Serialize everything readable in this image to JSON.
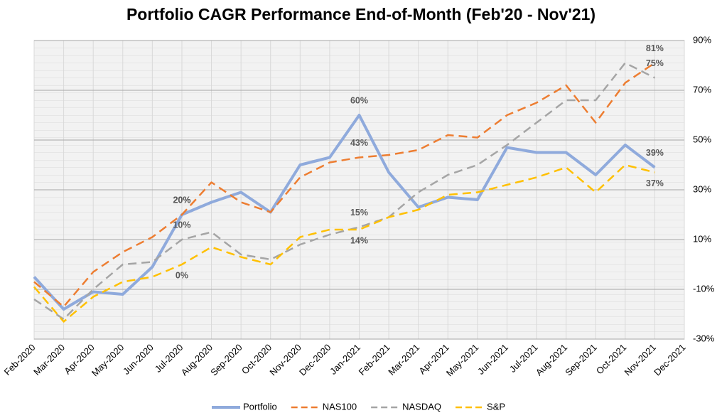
{
  "chart_data": {
    "type": "line",
    "title": "Portfolio CAGR Performance End-of-Month (Feb'20 - Nov'21)",
    "categories": [
      "Feb-2020",
      "Mar-2020",
      "Apr-2020",
      "May-2020",
      "Jun-2020",
      "Jul-2020",
      "Aug-2020",
      "Sep-2020",
      "Oct-2020",
      "Nov-2020",
      "Dec-2020",
      "Jan-2021",
      "Feb-2021",
      "Mar-2021",
      "Apr-2021",
      "May-2021",
      "Jun-2021",
      "Jul-2021",
      "Aug-2021",
      "Sep-2021",
      "Oct-2021",
      "Nov-2021",
      "Dec-2021"
    ],
    "ylim": [
      -30,
      90
    ],
    "yticks": [
      {
        "value": -30,
        "label": "-30%"
      },
      {
        "value": -10,
        "label": "-10%"
      },
      {
        "value": 10,
        "label": "10%"
      },
      {
        "value": 30,
        "label": "30%"
      },
      {
        "value": 50,
        "label": "50%"
      },
      {
        "value": 70,
        "label": "70%"
      },
      {
        "value": 90,
        "label": "90%"
      }
    ],
    "grid": true,
    "legend": "bottom",
    "series": [
      {
        "name": "Portfolio",
        "color": "#8faadc",
        "dash": false,
        "values": [
          -5,
          -18,
          -11,
          -12,
          -1,
          20,
          25,
          29,
          21,
          40,
          43,
          60,
          37,
          23,
          27,
          26,
          47,
          45,
          45,
          36,
          48,
          39,
          null
        ],
        "value_labels": [
          null,
          null,
          null,
          null,
          null,
          "20%",
          null,
          null,
          null,
          null,
          null,
          "60%",
          null,
          null,
          null,
          null,
          null,
          null,
          null,
          null,
          null,
          "39%",
          null
        ]
      },
      {
        "name": "NAS100",
        "color": "#ed7d31",
        "dash": true,
        "values": [
          -7,
          -17,
          -3,
          5,
          11,
          20,
          33,
          25,
          21,
          35,
          41,
          43,
          44,
          46,
          52,
          51,
          60,
          65,
          72,
          57,
          73,
          81,
          null
        ],
        "value_labels": [
          null,
          null,
          null,
          null,
          null,
          "20%",
          null,
          null,
          null,
          null,
          null,
          "43%",
          null,
          null,
          null,
          null,
          null,
          null,
          null,
          null,
          null,
          "81%",
          null
        ]
      },
      {
        "name": "NASDAQ",
        "color": "#a5a5a5",
        "dash": true,
        "values": [
          -14,
          -22,
          -10,
          0,
          1,
          10,
          13,
          4,
          2,
          8,
          12,
          15,
          19,
          29,
          36,
          40,
          48,
          57,
          66,
          66,
          81,
          75,
          null
        ],
        "value_labels": [
          null,
          null,
          null,
          null,
          null,
          "10%",
          null,
          null,
          null,
          null,
          null,
          "15%",
          null,
          null,
          null,
          null,
          null,
          null,
          null,
          null,
          null,
          "75%",
          null
        ]
      },
      {
        "name": "S&P",
        "color": "#ffc000",
        "dash": true,
        "values": [
          -9,
          -23,
          -13,
          -7,
          -5,
          0,
          7,
          3,
          0,
          11,
          14,
          14,
          19,
          22,
          28,
          29,
          32,
          35,
          39,
          29,
          40,
          37,
          null
        ],
        "value_labels": [
          null,
          null,
          null,
          null,
          null,
          "0%",
          null,
          null,
          null,
          null,
          null,
          "14%",
          null,
          null,
          null,
          null,
          null,
          null,
          null,
          null,
          null,
          "37%",
          null
        ]
      }
    ]
  }
}
